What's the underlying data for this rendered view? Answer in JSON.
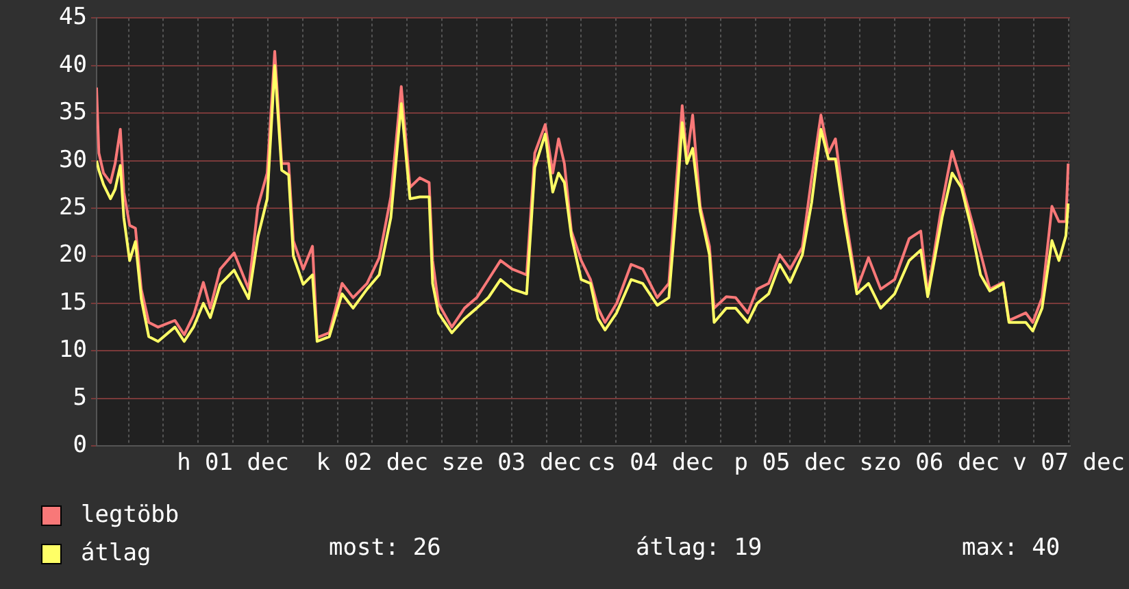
{
  "chart_data": {
    "type": "line",
    "x": [
      "--11-30T12:30",
      "--11-30T12:54",
      "--11-30T13:42",
      "--11-30T14:54",
      "--11-30T15:42",
      "--11-30T16:36",
      "--11-30T17:12",
      "--11-30T18:12",
      "--11-30T19:12",
      "--11-30T20:12",
      "--11-30T21:30",
      "--11-30T23:06",
      "--12-01T02:00",
      "--12-01T03:36",
      "--12-01T05:12",
      "--12-01T06:54",
      "--12-01T08:06",
      "--12-01T09:48",
      "--12-01T12:12",
      "--12-01T14:42",
      "--12-01T16:18",
      "--12-01T17:54",
      "--12-01T19:12",
      "--12-01T20:24",
      "--12-01T21:36",
      "--12-01T22:24",
      "--12-02T00:06",
      "--12-02T01:42",
      "--12-02T02:30",
      "--12-02T04:36",
      "--12-02T06:48",
      "--12-02T08:42",
      "--12-02T11:06",
      "--12-02T13:12",
      "--12-02T15:12",
      "--12-02T17:00",
      "--12-02T18:30",
      "--12-02T20:12",
      "--12-02T21:48",
      "--12-02T22:24",
      "--12-02T23:24",
      "--12-03T01:42",
      "--12-03T03:54",
      "--12-03T06:00",
      "--12-03T08:00",
      "--12-03T10:06",
      "--12-03T12:06",
      "--12-03T14:36",
      "--12-03T16:00",
      "--12-03T17:48",
      "--12-03T19:06",
      "--12-03T20:06",
      "--12-03T21:06",
      "--12-03T22:18",
      "--12-04T00:00",
      "--12-04T01:36",
      "--12-04T02:54",
      "--12-04T04:06",
      "--12-04T06:06",
      "--12-04T08:36",
      "--12-04T10:36",
      "--12-04T13:06",
      "--12-04T15:06",
      "--12-04T16:24",
      "--12-04T17:24",
      "--12-04T18:12",
      "--12-04T19:12",
      "--12-04T20:30",
      "--12-04T22:06",
      "--12-04T22:54",
      "--12-05T01:00",
      "--12-05T02:36",
      "--12-05T04:42",
      "--12-05T06:18",
      "--12-05T08:18",
      "--12-05T10:12",
      "--12-05T12:00",
      "--12-05T14:06",
      "--12-05T15:42",
      "--12-05T17:18",
      "--12-05T18:36",
      "--12-05T19:48",
      "--12-05T21:24",
      "--12-05T23:30",
      "--12-06T01:30",
      "--12-06T03:36",
      "--12-06T06:00",
      "--12-06T08:30",
      "--12-06T10:30",
      "--12-06T11:42",
      "--12-06T14:12",
      "--12-06T15:54",
      "--12-06T17:30",
      "--12-06T19:06",
      "--12-06T20:48",
      "--12-06T22:24",
      "--12-07T00:42",
      "--12-07T01:42",
      "--12-07T04:36",
      "--12-07T05:48",
      "--12-07T07:24",
      "--12-07T09:06",
      "--12-07T10:18",
      "--12-07T11:30",
      "--12-07T11:54"
    ],
    "series": [
      {
        "name": "legtöbb",
        "color": "#f87878",
        "values": [
          37.7,
          30.8,
          28.7,
          27.7,
          29.7,
          33.3,
          26.7,
          23.2,
          22.9,
          16.5,
          13.0,
          12.5,
          13.2,
          11.7,
          13.7,
          17.2,
          14.5,
          18.6,
          20.3,
          16.5,
          25.2,
          28.7,
          41.5,
          29.7,
          29.7,
          21.6,
          18.6,
          21,
          11.4,
          11.9,
          17.1,
          15.6,
          17.1,
          19.8,
          26.2,
          37.8,
          27.2,
          28.2,
          27.7,
          19.5,
          15,
          12.5,
          14.5,
          15.6,
          17.5,
          19.5,
          18.6,
          18.0,
          30.8,
          33.8,
          28.7,
          32.3,
          29.7,
          22.6,
          19.5,
          17.5,
          14.5,
          13,
          15,
          19.1,
          18.6,
          15.6,
          17.1,
          27.7,
          35.8,
          30.2,
          34.8,
          25.2,
          21,
          14.5,
          15.7,
          15.6,
          14,
          16.5,
          17.1,
          20.1,
          18.6,
          20.9,
          28.2,
          34.8,
          30.8,
          32.3,
          24.7,
          16.5,
          19.8,
          16.5,
          17.5,
          21.8,
          22.6,
          16,
          25.6,
          31,
          27.7,
          24.1,
          20.3,
          16.5,
          17.2,
          13.2,
          14,
          13,
          15.6,
          25.2,
          23.6,
          23.6,
          29.7
        ]
      },
      {
        "name": "átlag",
        "color": "#ffff66",
        "values": [
          30,
          29,
          27.5,
          26,
          27,
          29.5,
          24,
          19.5,
          21.5,
          15.5,
          11.5,
          11.0,
          12.5,
          11,
          12.5,
          15,
          13.5,
          17,
          18.5,
          15.5,
          22,
          26,
          40,
          29,
          28.5,
          20,
          17,
          18,
          11,
          11.5,
          16,
          14.5,
          16.5,
          18,
          24,
          36,
          26,
          26.2,
          26.2,
          17.1,
          14,
          11.9,
          13.4,
          14.5,
          15.6,
          17.5,
          16.5,
          16,
          29.3,
          32.8,
          26.7,
          28.7,
          27.7,
          22.1,
          17.5,
          17.1,
          13.4,
          12.2,
          14,
          17.5,
          17.1,
          14.8,
          15.6,
          25.2,
          34,
          29.7,
          31.3,
          24.7,
          20.1,
          13,
          14.5,
          14.5,
          13,
          15,
          16,
          19.1,
          17.2,
          20.1,
          25.6,
          33.3,
          30.2,
          30.2,
          23.6,
          16,
          17.1,
          14.5,
          16,
          19.5,
          20.6,
          15.7,
          24.1,
          28.7,
          27.2,
          23.2,
          18,
          16.3,
          17.1,
          13,
          13,
          12.1,
          14.5,
          21.6,
          19.5,
          22.1,
          25.5
        ]
      }
    ],
    "xlim": [
      "--11-30T12:30",
      "--12-07T12:12"
    ],
    "xticks": [
      {
        "value": "--11-30T18:00",
        "label": null
      },
      {
        "value": "--12-01T00:00",
        "label": null
      },
      {
        "value": "--12-01T06:00",
        "label": null
      },
      {
        "value": "--12-01T12:00",
        "label": "h 01 dec"
      },
      {
        "value": "--12-01T18:00",
        "label": null
      },
      {
        "value": "--12-02T00:00",
        "label": null
      },
      {
        "value": "--12-02T06:00",
        "label": null
      },
      {
        "value": "--12-02T12:00",
        "label": "k 02 dec"
      },
      {
        "value": "--12-02T18:00",
        "label": null
      },
      {
        "value": "--12-03T00:00",
        "label": null
      },
      {
        "value": "--12-03T06:00",
        "label": null
      },
      {
        "value": "--12-03T12:00",
        "label": "sze 03 dec"
      },
      {
        "value": "--12-03T18:00",
        "label": null
      },
      {
        "value": "--12-04T00:00",
        "label": null
      },
      {
        "value": "--12-04T06:00",
        "label": null
      },
      {
        "value": "--12-04T12:00",
        "label": "cs 04 dec"
      },
      {
        "value": "--12-04T18:00",
        "label": null
      },
      {
        "value": "--12-05T00:00",
        "label": null
      },
      {
        "value": "--12-05T06:00",
        "label": null
      },
      {
        "value": "--12-05T12:00",
        "label": "p 05 dec"
      },
      {
        "value": "--12-05T18:00",
        "label": null
      },
      {
        "value": "--12-06T00:00",
        "label": null
      },
      {
        "value": "--12-06T06:00",
        "label": null
      },
      {
        "value": "--12-06T12:00",
        "label": "szo 06 dec"
      },
      {
        "value": "--12-06T18:00",
        "label": null
      },
      {
        "value": "--12-07T00:00",
        "label": null
      },
      {
        "value": "--12-07T06:00",
        "label": null
      },
      {
        "value": "--12-07T12:00",
        "label": "v 07 dec"
      }
    ],
    "ylim": [
      0,
      45
    ],
    "yticks": [
      0,
      5,
      10,
      15,
      20,
      25,
      30,
      35,
      40,
      45
    ],
    "grid": true,
    "legend": "bottom",
    "marker": "none",
    "line_style": "solid",
    "annotations": [
      "most: 26",
      "átlag: 19",
      "max: 40"
    ]
  }
}
